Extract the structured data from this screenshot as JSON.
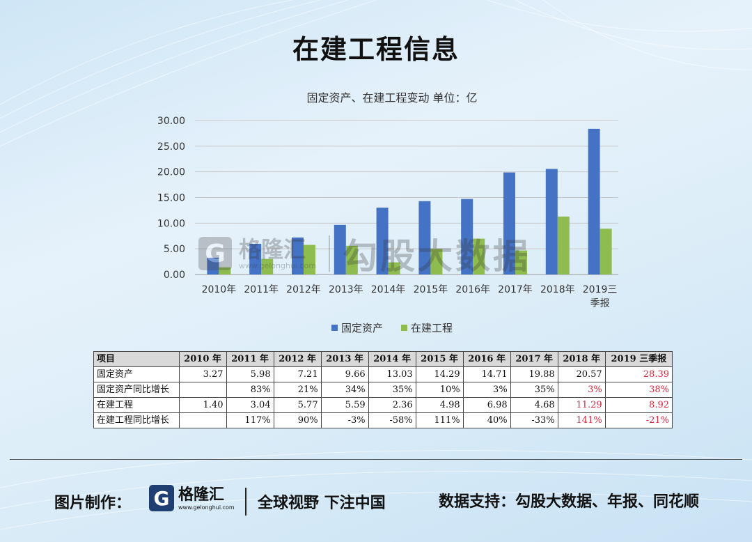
{
  "page": {
    "title": "在建工程信息"
  },
  "chart_data": {
    "type": "bar",
    "title": "固定资产、在建工程变动 单位：亿",
    "categories": [
      "2010年",
      "2011年",
      "2012年",
      "2013年",
      "2014年",
      "2015年",
      "2016年",
      "2017年",
      "2018年",
      "2019三季报"
    ],
    "series": [
      {
        "name": "固定资产",
        "values": [
          3.27,
          5.98,
          7.21,
          9.66,
          13.03,
          14.29,
          14.71,
          19.88,
          20.57,
          28.39
        ],
        "color": "#4472c4"
      },
      {
        "name": "在建工程",
        "values": [
          1.4,
          3.04,
          5.77,
          5.59,
          2.36,
          4.98,
          6.98,
          4.68,
          11.29,
          8.92
        ],
        "color": "#8fbc4f"
      }
    ],
    "y_ticks": [
      "0.00",
      "5.00",
      "10.00",
      "15.00",
      "20.00",
      "25.00",
      "30.00"
    ],
    "ylim": [
      0,
      30
    ],
    "grid": true,
    "legend_position": "bottom"
  },
  "watermark": {
    "logo_letter": "G",
    "brand": "格隆汇",
    "url": "www.gelonghui.com",
    "text": "勾股大数据"
  },
  "table": {
    "headers": [
      "项目",
      "2010 年",
      "2011 年",
      "2012 年",
      "2013 年",
      "2014 年",
      "2015 年",
      "2016 年",
      "2017 年",
      "2018 年",
      "2019 三季报"
    ],
    "rows": [
      {
        "label": "固定资产",
        "cells": [
          "3.27",
          "5.98",
          "7.21",
          "9.66",
          "13.03",
          "14.29",
          "14.71",
          "19.88",
          "20.57",
          "28.39"
        ],
        "red": [
          9
        ]
      },
      {
        "label": "固定资产同比增长",
        "cells": [
          "",
          "83%",
          "21%",
          "34%",
          "35%",
          "10%",
          "3%",
          "35%",
          "3%",
          "38%"
        ],
        "red": [
          8,
          9
        ]
      },
      {
        "label": "在建工程",
        "cells": [
          "1.40",
          "3.04",
          "5.77",
          "5.59",
          "2.36",
          "4.98",
          "6.98",
          "4.68",
          "11.29",
          "8.92"
        ],
        "red": [
          8,
          9
        ]
      },
      {
        "label": "在建工程同比增长",
        "cells": [
          "",
          "117%",
          "90%",
          "-3%",
          "-58%",
          "111%",
          "40%",
          "-33%",
          "141%",
          "-21%"
        ],
        "red": [
          8,
          9
        ]
      }
    ],
    "red_color": "#d7263d"
  },
  "footer": {
    "made_by": "图片制作：",
    "logo_letter": "G",
    "logo_name": "格隆汇",
    "logo_url": "www.gelonghui.com",
    "slogan": "全球视野 下注中国",
    "source": "数据支持：勾股大数据、年报、同花顺"
  }
}
